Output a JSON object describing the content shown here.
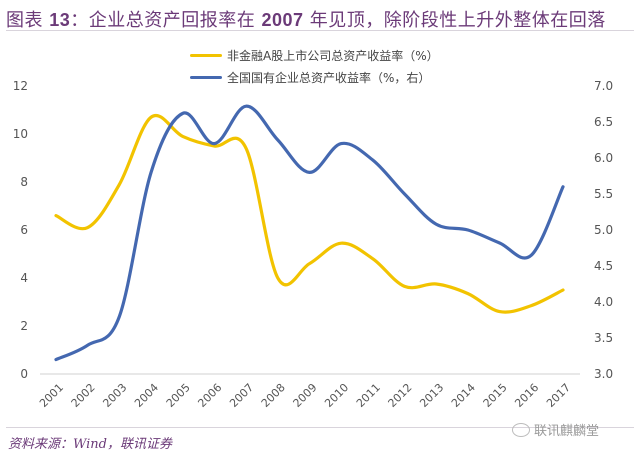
{
  "title_prefix": "图表 ",
  "title_num": "13",
  "title_text": "：企业总资产回报率在 ",
  "title_year": "2007",
  "title_rest": " 年见顶，除阶段性上升外整体在回落",
  "source": "资料来源：Wind，联讯证券",
  "watermark": "联讯麒麟堂",
  "colors": {
    "yellow": "#f2c300",
    "blue": "#4468b0",
    "title": "#6b3a78"
  },
  "chart_data": {
    "type": "line",
    "title": "企业总资产回报率在 2007 年见顶，除阶段性上升外整体在回落",
    "x": [
      "2001",
      "2002",
      "2003",
      "2004",
      "2005",
      "2006",
      "2007",
      "2008",
      "2009",
      "2010",
      "2011",
      "2012",
      "2013",
      "2014",
      "2015",
      "2016",
      "2017"
    ],
    "series": [
      {
        "name": "非金融A股上市公司总资产收益率（%）",
        "axis": "left",
        "color": "#f2c300",
        "values": [
          6.6,
          6.1,
          7.9,
          10.7,
          9.9,
          9.5,
          9.4,
          4.0,
          4.6,
          5.45,
          4.8,
          3.65,
          3.75,
          3.35,
          2.6,
          2.85,
          3.5
        ]
      },
      {
        "name": "全国国有企业总资产收益率（%，右）",
        "axis": "right",
        "color": "#4468b0",
        "values": [
          3.2,
          3.4,
          3.8,
          5.8,
          6.62,
          6.2,
          6.72,
          6.25,
          5.8,
          6.2,
          5.97,
          5.5,
          5.08,
          5.0,
          4.82,
          4.65,
          5.6
        ]
      }
    ],
    "left_axis": {
      "ylim": [
        0,
        12
      ],
      "ticks": [
        "0",
        "2",
        "4",
        "6",
        "8",
        "10",
        "12"
      ]
    },
    "right_axis": {
      "ylim": [
        3.0,
        7.0
      ],
      "ticks": [
        "3.0",
        "3.5",
        "4.0",
        "4.5",
        "5.0",
        "5.5",
        "6.0",
        "6.5",
        "7.0"
      ]
    },
    "legend_position": "top-center",
    "grid": false
  }
}
